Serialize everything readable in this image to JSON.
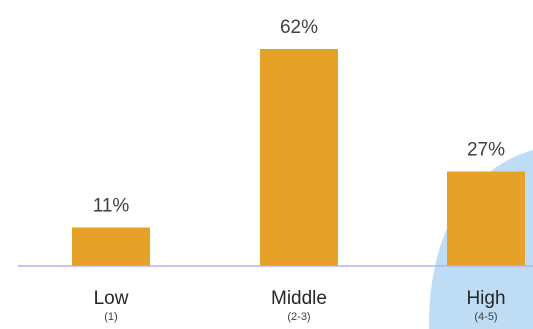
{
  "chart_data": {
    "type": "bar",
    "categories": [
      "Low",
      "Middle",
      "High"
    ],
    "category_sublabels": [
      "(1)",
      "(2-3)",
      "(4-5)"
    ],
    "values": [
      11,
      62,
      27
    ],
    "value_labels": [
      "11%",
      "62%",
      "27%"
    ],
    "ylim": [
      0,
      70
    ],
    "grid": false,
    "colors": {
      "bar": "#E5A128",
      "axis": "#B4B4E6",
      "highlight": "#BEDDF5"
    }
  }
}
